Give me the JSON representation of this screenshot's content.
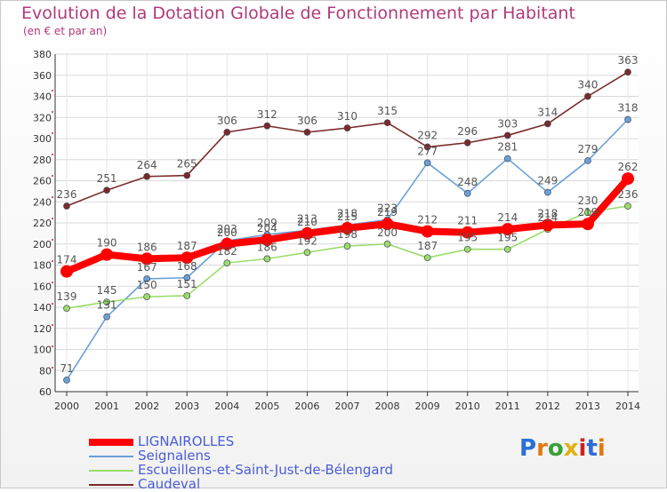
{
  "title": "Evolution de la Dotation Globale de Fonctionnement par Habitant",
  "subtitle": "(en € et par an)",
  "logo": "Proxiti",
  "chart_data": {
    "type": "line",
    "title": "Evolution de la Dotation Globale de Fonctionnement par Habitant",
    "ylabel": "(en € et par an)",
    "xlabel": "",
    "ylim": [
      60,
      380
    ],
    "yticks": [
      60,
      80,
      100,
      120,
      140,
      160,
      180,
      200,
      220,
      240,
      260,
      280,
      300,
      320,
      340,
      360,
      380
    ],
    "x": [
      "2000",
      "2001",
      "2002",
      "2003",
      "2004",
      "2005",
      "2006",
      "2007",
      "2008",
      "2009",
      "2010",
      "2011",
      "2012",
      "2013",
      "2014"
    ],
    "grid": true,
    "legend_position": "bottom-left",
    "series": [
      {
        "name": "LIGNAIROLLES",
        "color": "#ff0000",
        "thick": true,
        "values": [
          174,
          190,
          186,
          187,
          200,
          204,
          210,
          215,
          219,
          212,
          211,
          214,
          218,
          219,
          262
        ],
        "labels": [
          "174",
          "190",
          "186",
          "187",
          "200",
          "204",
          "210",
          "215",
          "219",
          "212",
          "211",
          "214",
          "218",
          "219",
          "262"
        ]
      },
      {
        "name": "Seignalens",
        "color": "#6aa0d8",
        "values": [
          71,
          131,
          167,
          168,
          203,
          209,
          213,
          218,
          223,
          277,
          248,
          281,
          249,
          279,
          318
        ],
        "labels": [
          "71",
          "131",
          "167",
          "168",
          "203",
          "209",
          "213",
          "218",
          "223",
          "277",
          "248",
          "281",
          "249",
          "279",
          "318"
        ]
      },
      {
        "name": "Escueillens-et-Saint-Just-de-Bélengard",
        "color": "#9adc6a",
        "values": [
          139,
          145,
          150,
          151,
          182,
          186,
          192,
          198,
          200,
          187,
          195,
          195,
          214,
          230,
          236
        ],
        "labels": [
          "139",
          "145",
          "150",
          "151",
          "182",
          "186",
          "192",
          "198",
          "200",
          "187",
          "195",
          "195",
          "214",
          "230",
          "236"
        ]
      },
      {
        "name": "Caudeval",
        "color": "#7a2a2a",
        "values": [
          236,
          251,
          264,
          265,
          306,
          312,
          306,
          310,
          315,
          292,
          296,
          303,
          314,
          340,
          363
        ],
        "labels": [
          "236",
          "251",
          "264",
          "265",
          "306",
          "312",
          "306",
          "310",
          "315",
          "292",
          "296",
          "303",
          "314",
          "340",
          "363"
        ]
      }
    ]
  }
}
